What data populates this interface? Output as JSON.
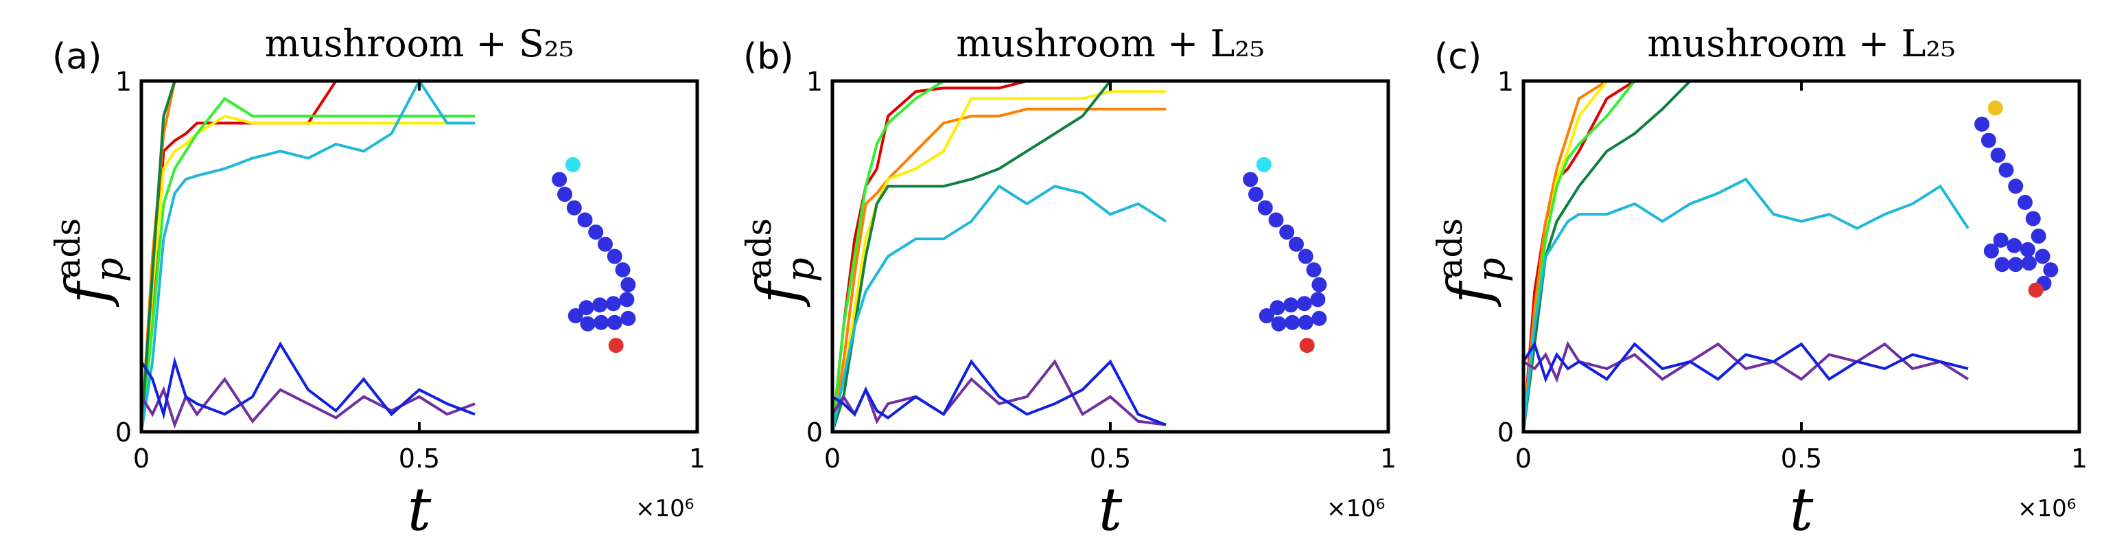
{
  "chart_data": [
    {
      "type": "line",
      "panel_label": "(a)",
      "title": "mushroom + S₂₅",
      "x_label": "t",
      "y_label": "f",
      "y_label_sub": "p",
      "y_label_sup": "ads",
      "x_multiplier": "×10⁶",
      "xlim": [
        0,
        1
      ],
      "xticks": [
        0,
        0.5,
        1
      ],
      "ylim": [
        0,
        1
      ],
      "yticks": [
        0,
        1
      ],
      "x": [
        0,
        0.02,
        0.04,
        0.06,
        0.08,
        0.1,
        0.15,
        0.2,
        0.25,
        0.3,
        0.35,
        0.4,
        0.45,
        0.5,
        0.55,
        0.6
      ],
      "series": [
        {
          "color": "#e00000",
          "values": [
            0,
            0.35,
            0.8,
            0.83,
            0.85,
            0.88,
            0.88,
            0.88,
            0.88,
            0.88,
            1,
            1,
            1,
            1,
            1,
            1
          ]
        },
        {
          "color": "#ff8000",
          "values": [
            0,
            0.5,
            0.85,
            1,
            1,
            1,
            1,
            1,
            1,
            1,
            1,
            1,
            1,
            1,
            1,
            1
          ]
        },
        {
          "color": "#ffee00",
          "values": [
            0,
            0.4,
            0.75,
            0.8,
            0.82,
            0.85,
            0.9,
            0.88,
            0.88,
            0.88,
            0.88,
            0.88,
            0.88,
            0.88,
            0.88,
            0.88
          ]
        },
        {
          "color": "#33ee33",
          "values": [
            0,
            0.3,
            0.65,
            0.75,
            0.8,
            0.85,
            0.95,
            0.9,
            0.9,
            0.9,
            0.9,
            0.9,
            0.9,
            0.9,
            0.9,
            0.9
          ]
        },
        {
          "color": "#108040",
          "values": [
            0,
            0.45,
            0.9,
            1,
            1,
            1,
            1,
            1,
            1,
            1,
            1,
            1,
            1,
            1,
            1,
            1
          ]
        },
        {
          "color": "#20b8d8",
          "values": [
            0,
            0.2,
            0.55,
            0.68,
            0.72,
            0.73,
            0.75,
            0.78,
            0.8,
            0.78,
            0.82,
            0.8,
            0.85,
            1,
            0.88,
            0.88
          ]
        },
        {
          "color": "#7030a0",
          "values": [
            0.1,
            0.05,
            0.12,
            0.02,
            0.1,
            0.05,
            0.15,
            0.03,
            0.12,
            0.08,
            0.04,
            0.1,
            0.06,
            0.1,
            0.05,
            0.08
          ]
        },
        {
          "color": "#1020e0",
          "values": [
            0.2,
            0.15,
            0.05,
            0.2,
            0.1,
            0.08,
            0.05,
            0.1,
            0.25,
            0.12,
            0.06,
            0.15,
            0.05,
            0.12,
            0.08,
            0.05
          ]
        }
      ]
    },
    {
      "type": "line",
      "panel_label": "(b)",
      "title": "mushroom + L₂₅",
      "x_label": "t",
      "y_label": "f",
      "y_label_sub": "p",
      "y_label_sup": "ads",
      "x_multiplier": "×10⁶",
      "xlim": [
        0,
        1
      ],
      "xticks": [
        0,
        0.5,
        1
      ],
      "ylim": [
        0,
        1
      ],
      "yticks": [
        0,
        1
      ],
      "x": [
        0,
        0.02,
        0.04,
        0.06,
        0.08,
        0.1,
        0.15,
        0.2,
        0.25,
        0.3,
        0.35,
        0.4,
        0.45,
        0.5,
        0.55,
        0.6
      ],
      "series": [
        {
          "color": "#e00000",
          "values": [
            0,
            0.3,
            0.55,
            0.7,
            0.75,
            0.9,
            0.97,
            0.98,
            0.98,
            0.98,
            1,
            1,
            1,
            1,
            1,
            1
          ]
        },
        {
          "color": "#ff8000",
          "values": [
            0,
            0.2,
            0.45,
            0.65,
            0.68,
            0.72,
            0.8,
            0.88,
            0.9,
            0.9,
            0.92,
            0.92,
            0.92,
            0.92,
            0.92,
            0.92
          ]
        },
        {
          "color": "#ffee00",
          "values": [
            0,
            0.15,
            0.35,
            0.55,
            0.65,
            0.72,
            0.75,
            0.8,
            0.95,
            0.95,
            0.95,
            0.95,
            0.95,
            0.97,
            0.97,
            0.97
          ]
        },
        {
          "color": "#33ee33",
          "values": [
            0,
            0.3,
            0.5,
            0.7,
            0.82,
            0.88,
            0.95,
            1,
            1,
            1,
            1,
            1,
            1,
            1,
            1,
            1
          ]
        },
        {
          "color": "#108040",
          "values": [
            0,
            0.1,
            0.3,
            0.5,
            0.65,
            0.7,
            0.7,
            0.7,
            0.72,
            0.75,
            0.8,
            0.85,
            0.9,
            1,
            1,
            1
          ]
        },
        {
          "color": "#20b8d8",
          "values": [
            0,
            0.15,
            0.3,
            0.4,
            0.45,
            0.5,
            0.55,
            0.55,
            0.6,
            0.7,
            0.65,
            0.7,
            0.68,
            0.62,
            0.65,
            0.6
          ]
        },
        {
          "color": "#7030a0",
          "values": [
            0.05,
            0.1,
            0.05,
            0.12,
            0.03,
            0.08,
            0.1,
            0.05,
            0.15,
            0.08,
            0.1,
            0.2,
            0.05,
            0.1,
            0.03,
            0.02
          ]
        },
        {
          "color": "#1020e0",
          "values": [
            0.1,
            0.08,
            0.05,
            0.12,
            0.06,
            0.04,
            0.1,
            0.05,
            0.2,
            0.1,
            0.05,
            0.08,
            0.12,
            0.2,
            0.05,
            0.02
          ]
        }
      ]
    },
    {
      "type": "line",
      "panel_label": "(c)",
      "title": "mushroom + L₂₅",
      "x_label": "t",
      "y_label": "f",
      "y_label_sub": "p",
      "y_label_sup": "ads",
      "x_multiplier": "×10⁶",
      "xlim": [
        0,
        1
      ],
      "xticks": [
        0,
        0.5,
        1
      ],
      "ylim": [
        0,
        1
      ],
      "yticks": [
        0,
        1
      ],
      "x": [
        0,
        0.02,
        0.04,
        0.06,
        0.08,
        0.1,
        0.15,
        0.2,
        0.25,
        0.3,
        0.35,
        0.4,
        0.45,
        0.5,
        0.55,
        0.6,
        0.65,
        0.7,
        0.75,
        0.8
      ],
      "series": [
        {
          "color": "#e00000",
          "values": [
            0,
            0.4,
            0.6,
            0.72,
            0.75,
            0.8,
            0.95,
            1,
            1,
            1,
            1,
            1,
            1,
            1,
            1,
            1,
            1,
            1,
            1,
            1
          ]
        },
        {
          "color": "#ff8000",
          "values": [
            0,
            0.35,
            0.6,
            0.75,
            0.85,
            0.95,
            1,
            1,
            1,
            1,
            1,
            1,
            1,
            1,
            1,
            1,
            1,
            1,
            1,
            1
          ]
        },
        {
          "color": "#ffee00",
          "values": [
            0,
            0.3,
            0.55,
            0.72,
            0.8,
            0.9,
            1,
            1,
            1,
            1,
            1,
            1,
            1,
            1,
            1,
            1,
            1,
            1,
            1,
            1
          ]
        },
        {
          "color": "#33ee33",
          "values": [
            0,
            0.3,
            0.55,
            0.7,
            0.78,
            0.82,
            0.9,
            1,
            1,
            1,
            1,
            1,
            1,
            1,
            1,
            1,
            1,
            1,
            1,
            1
          ]
        },
        {
          "color": "#108040",
          "values": [
            0,
            0.25,
            0.5,
            0.6,
            0.65,
            0.7,
            0.8,
            0.85,
            0.92,
            1,
            1,
            1,
            1,
            1,
            1,
            1,
            1,
            1,
            1,
            1
          ]
        },
        {
          "color": "#20b8d8",
          "values": [
            0,
            0.3,
            0.5,
            0.55,
            0.6,
            0.62,
            0.62,
            0.65,
            0.6,
            0.65,
            0.68,
            0.72,
            0.62,
            0.6,
            0.62,
            0.58,
            0.62,
            0.65,
            0.7,
            0.58
          ]
        },
        {
          "color": "#7030a0",
          "values": [
            0.2,
            0.18,
            0.22,
            0.15,
            0.25,
            0.2,
            0.18,
            0.22,
            0.15,
            0.2,
            0.25,
            0.18,
            0.2,
            0.15,
            0.22,
            0.2,
            0.25,
            0.18,
            0.2,
            0.15
          ]
        },
        {
          "color": "#1020e0",
          "values": [
            0.2,
            0.25,
            0.15,
            0.22,
            0.18,
            0.2,
            0.15,
            0.25,
            0.18,
            0.2,
            0.15,
            0.22,
            0.2,
            0.25,
            0.15,
            0.2,
            0.18,
            0.22,
            0.2,
            0.18
          ]
        }
      ]
    }
  ]
}
